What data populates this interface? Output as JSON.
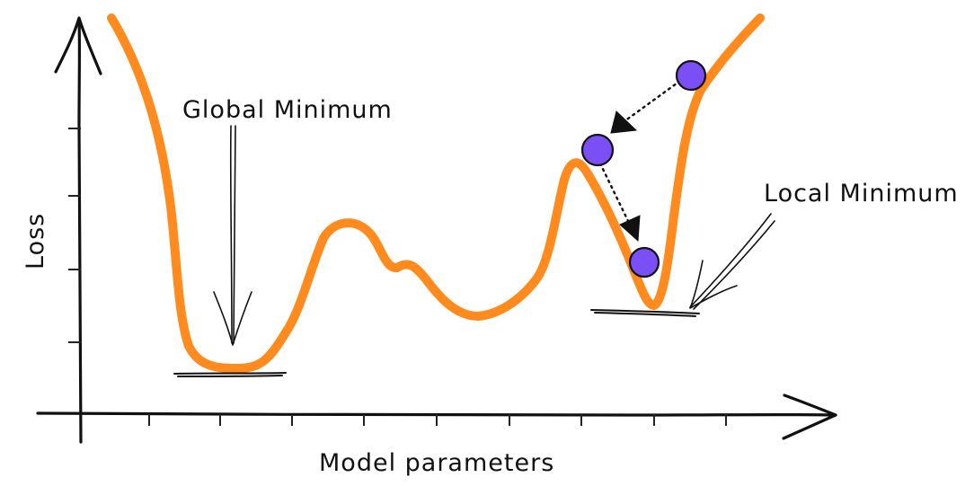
{
  "labels": {
    "x_axis": "Model parameters",
    "y_axis": "Loss",
    "global_minimum": "Global Minimum",
    "local_minimum": "Local Minimum"
  },
  "colors": {
    "loss_curve": "#ff8a1e",
    "step_point": "#7a4ff5",
    "ink": "#111111"
  },
  "icons": {
    "step_marker": "circle-dot-icon",
    "step_arrow": "arrow-head-icon"
  },
  "gradient_steps": 3
}
